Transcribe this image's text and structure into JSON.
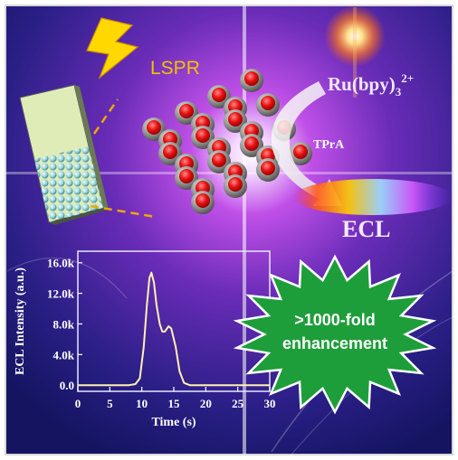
{
  "labels": {
    "lspr": "LSPR",
    "ru_main": "Ru(bpy)",
    "ru_sub": "3",
    "ru_sup": "2+",
    "tpra": "TPrA",
    "ecl": "ECL"
  },
  "badge": {
    "line1": ">1000-fold",
    "line2": "enhancement"
  },
  "colors": {
    "background_dark": "#1a1a6e",
    "background_glow": "#c040e0",
    "lspr_text": "#f2c300",
    "lightning": "#ffd800",
    "badge_fill": "#1e9e3a",
    "nanoparticle_core": "#e81010",
    "nanoparticle_shell": "#8a8a8a",
    "curve": "#fff2b0",
    "dash_line": "#f0a800"
  },
  "chart_data": {
    "type": "line",
    "title": "",
    "xlabel": "Time (s)",
    "ylabel": "ECL Intensity (a.u.)",
    "xlim": [
      0,
      30
    ],
    "ylim": [
      -800,
      17500
    ],
    "x_ticks": [
      "0",
      "5",
      "10",
      "15",
      "20",
      "25",
      "30"
    ],
    "y_ticks": [
      "0.0",
      "4.0k",
      "8.0k",
      "12.0k",
      "16.0k"
    ],
    "x_tick_values": [
      0,
      5,
      10,
      15,
      20,
      25,
      30
    ],
    "y_tick_values": [
      0,
      4000,
      8000,
      12000,
      16000
    ],
    "series": [
      {
        "points": [
          [
            0,
            0
          ],
          [
            8,
            0
          ],
          [
            9,
            150
          ],
          [
            9.7,
            900
          ],
          [
            10.3,
            5000
          ],
          [
            10.8,
            10500
          ],
          [
            11.2,
            14000
          ],
          [
            11.5,
            14700
          ],
          [
            11.9,
            13400
          ],
          [
            12.3,
            10500
          ],
          [
            12.8,
            8000
          ],
          [
            13.2,
            7000
          ],
          [
            13.6,
            7000
          ],
          [
            14.2,
            7700
          ],
          [
            14.6,
            7400
          ],
          [
            15.3,
            5000
          ],
          [
            15.9,
            1800
          ],
          [
            16.6,
            300
          ],
          [
            17.5,
            0
          ],
          [
            30,
            0
          ]
        ]
      }
    ]
  }
}
